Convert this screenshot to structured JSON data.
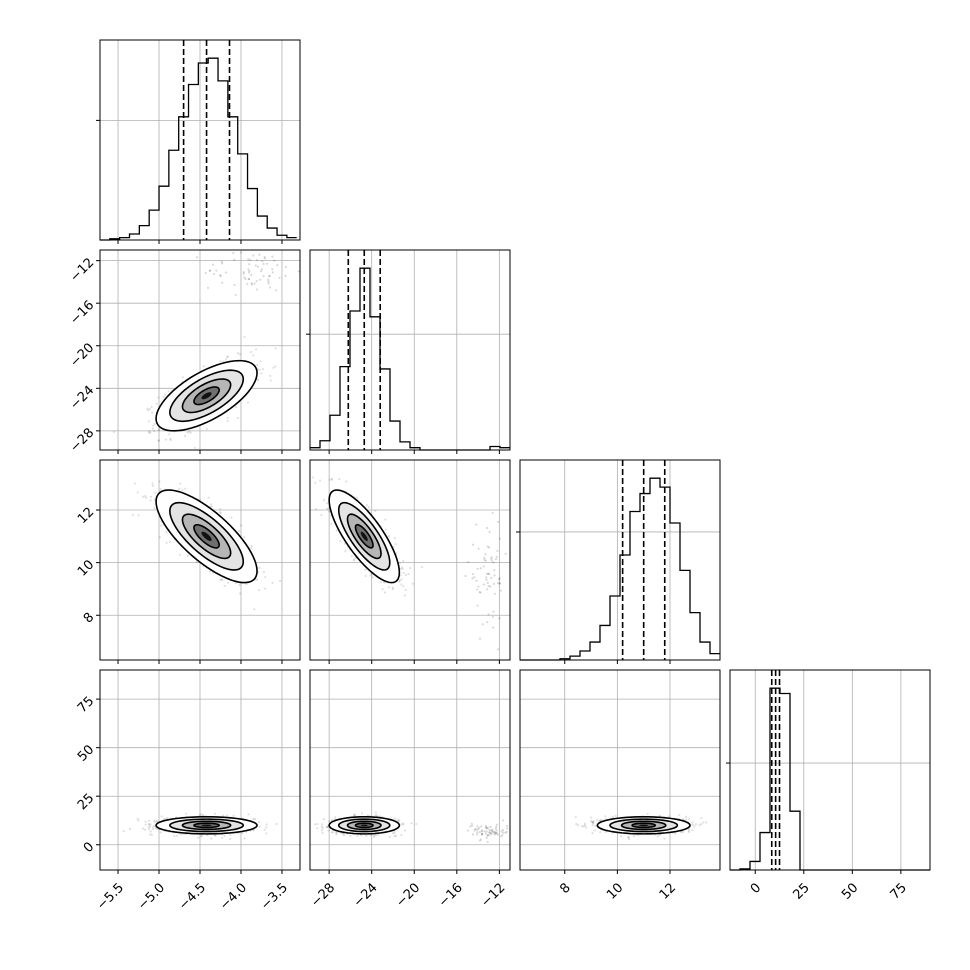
{
  "chart_data": {
    "type": "corner",
    "parameters": [
      {
        "index": 0,
        "range": [
          -5.72,
          -3.28
        ],
        "ticks": [
          -5.5,
          -5.0,
          -4.5,
          -4.0,
          -3.5
        ],
        "tick_labels": [
          "−5.5",
          "−5.0",
          "−4.5",
          "−4.0",
          "−3.5"
        ],
        "median": -4.42,
        "q16": -4.7,
        "q84": -4.14
      },
      {
        "index": 1,
        "range": [
          -29.8,
          -11.0
        ],
        "ticks": [
          -28,
          -24,
          -20,
          -16,
          -12
        ],
        "tick_labels": [
          "−28",
          "−24",
          "−20",
          "−16",
          "−12"
        ],
        "median": -24.7,
        "q16": -26.2,
        "q84": -23.2
      },
      {
        "index": 2,
        "range": [
          6.3,
          13.9
        ],
        "ticks": [
          8,
          10,
          12
        ],
        "tick_labels": [
          "8",
          "10",
          "12"
        ],
        "median": 11.0,
        "q16": 10.2,
        "q84": 11.8
      },
      {
        "index": 3,
        "range": [
          -13,
          90
        ],
        "ticks": [
          0,
          25,
          50,
          75
        ],
        "tick_labels": [
          "0",
          "25",
          "50",
          "75"
        ],
        "median": 10.5,
        "q16": 8.5,
        "q84": 12.5
      }
    ],
    "histograms": [
      {
        "param": 0,
        "bin_edges": [
          -5.72,
          -5.6,
          -5.48,
          -5.36,
          -5.24,
          -5.12,
          -5.0,
          -4.88,
          -4.76,
          -4.64,
          -4.52,
          -4.4,
          -4.28,
          -4.16,
          -4.04,
          -3.92,
          -3.8,
          -3.68,
          -3.56,
          -3.44,
          -3.32
        ],
        "counts": [
          0,
          1,
          2,
          5,
          12,
          25,
          45,
          75,
          103,
          130,
          148,
          152,
          133,
          103,
          72,
          43,
          20,
          10,
          4,
          2
        ]
      },
      {
        "param": 1,
        "bin_edges": [
          -29.8,
          -28.86,
          -27.92,
          -26.98,
          -26.04,
          -25.1,
          -24.16,
          -23.22,
          -22.28,
          -21.34,
          -20.4,
          -19.46,
          -18.52,
          -17.58,
          -16.64,
          -15.7,
          -14.76,
          -13.82,
          -12.88,
          -11.94,
          -11.0
        ],
        "counts": [
          2,
          8,
          30,
          72,
          120,
          157,
          115,
          70,
          25,
          7,
          2,
          0,
          0,
          0,
          0,
          0,
          0,
          0,
          3,
          2
        ]
      },
      {
        "param": 2,
        "bin_edges": [
          6.3,
          6.68,
          7.06,
          7.44,
          7.82,
          8.2,
          8.58,
          8.96,
          9.34,
          9.72,
          10.1,
          10.48,
          10.86,
          11.24,
          11.62,
          12.0,
          12.38,
          12.76,
          13.14,
          13.52,
          13.9
        ],
        "counts": [
          0,
          0,
          0,
          0,
          1,
          3,
          7,
          14,
          27,
          50,
          82,
          116,
          130,
          142,
          135,
          107,
          70,
          37,
          14,
          5
        ]
      },
      {
        "param": 3,
        "bin_edges": [
          -13,
          -7.85,
          -2.7,
          2.45,
          7.6,
          12.75,
          17.9,
          23.05,
          28.2,
          33.35,
          38.5,
          43.65,
          48.8,
          53.95,
          59.1,
          64.25,
          69.4,
          74.55,
          79.7,
          84.85,
          90.0
        ],
        "counts": [
          0,
          1,
          8,
          35,
          170,
          165,
          55,
          0,
          0,
          0,
          0,
          0,
          0,
          0,
          0,
          0,
          0,
          0,
          0,
          0
        ]
      }
    ],
    "joint_panels": [
      {
        "x_param": 0,
        "y_param": 1,
        "center": [
          -4.42,
          -24.7
        ],
        "correlation": 0.65,
        "outlier_cluster": {
          "center": [
            -3.85,
            -13.0
          ],
          "spread": [
            0.3,
            1.0
          ]
        }
      },
      {
        "x_param": 0,
        "y_param": 2,
        "center": [
          -4.42,
          11.0
        ],
        "correlation": -0.75
      },
      {
        "x_param": 1,
        "y_param": 2,
        "center": [
          -24.7,
          11.0
        ],
        "correlation": -0.78,
        "outlier_cluster": {
          "center": [
            -13.0,
            9.5
          ],
          "spread": [
            1.0,
            0.9
          ]
        }
      },
      {
        "x_param": 0,
        "y_param": 3,
        "center": [
          -4.42,
          10.0
        ],
        "correlation": 0.0
      },
      {
        "x_param": 1,
        "y_param": 3,
        "center": [
          -24.7,
          10.0
        ],
        "correlation": 0.0,
        "outlier_cluster": {
          "center": [
            -13.0,
            7.0
          ],
          "spread": [
            1.0,
            2.0
          ]
        }
      },
      {
        "x_param": 2,
        "y_param": 3,
        "center": [
          11.0,
          10.0
        ],
        "correlation": 0.0
      }
    ],
    "quantiles": [
      0.16,
      0.5,
      0.84
    ],
    "contour_levels": 4,
    "grid": true
  }
}
